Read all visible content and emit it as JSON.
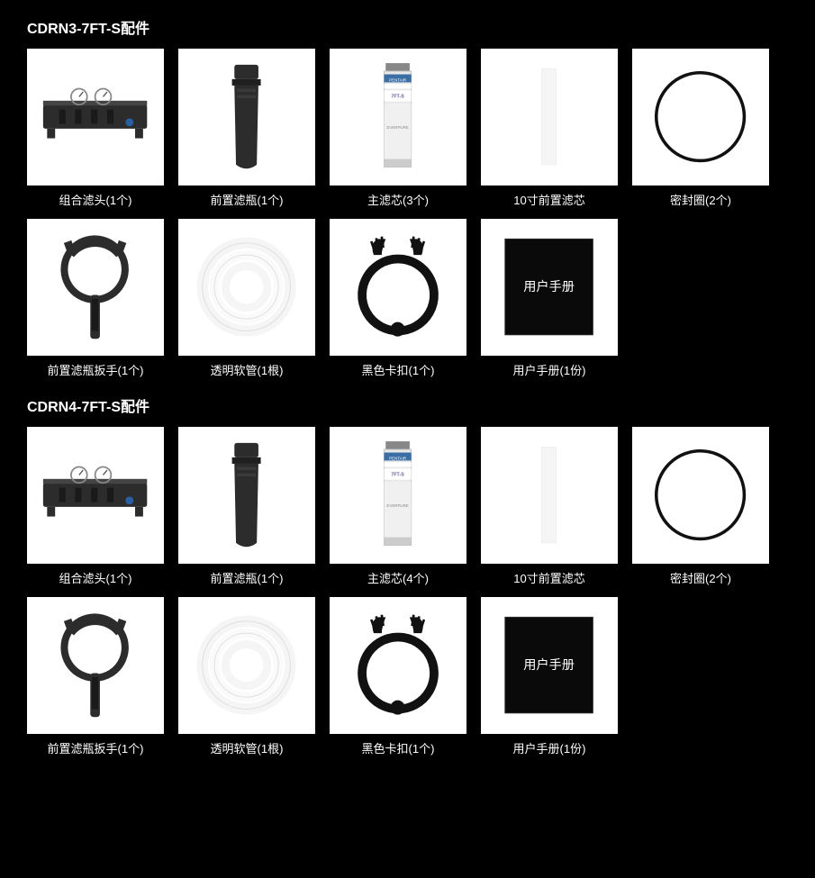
{
  "colors": {
    "bg": "#000000",
    "box_bg": "#ffffff",
    "text": "#ffffff",
    "dark_part": "#2c2c2c",
    "light_gray": "#d9d9d9",
    "pale": "#f5f5f5",
    "filter_label_purple": "#6b5b95",
    "filter_label_blue": "#3a6ea5"
  },
  "sections": [
    {
      "title": "CDRN3-7FT-S配件",
      "items": [
        {
          "icon": "filter-head",
          "label": "组合滤头(1个)"
        },
        {
          "icon": "pre-bottle",
          "label": "前置滤瓶(1个)"
        },
        {
          "icon": "main-filter",
          "label": "主滤芯(3个)"
        },
        {
          "icon": "pre-filter",
          "label": "10寸前置滤芯"
        },
        {
          "icon": "o-ring",
          "label": "密封圈(2个)"
        },
        {
          "icon": "wrench",
          "label": "前置滤瓶扳手(1个)"
        },
        {
          "icon": "hose",
          "label": "透明软管(1根)"
        },
        {
          "icon": "clip",
          "label": "黑色卡扣(1个)"
        },
        {
          "icon": "manual",
          "label": "用户手册(1份)",
          "manual_text": "用户手册"
        }
      ]
    },
    {
      "title": "CDRN4-7FT-S配件",
      "items": [
        {
          "icon": "filter-head",
          "label": "组合滤头(1个)"
        },
        {
          "icon": "pre-bottle",
          "label": "前置滤瓶(1个)"
        },
        {
          "icon": "main-filter",
          "label": "主滤芯(4个)"
        },
        {
          "icon": "pre-filter",
          "label": "10寸前置滤芯"
        },
        {
          "icon": "o-ring",
          "label": "密封圈(2个)"
        },
        {
          "icon": "wrench",
          "label": "前置滤瓶扳手(1个)"
        },
        {
          "icon": "hose",
          "label": "透明软管(1根)"
        },
        {
          "icon": "clip",
          "label": "黑色卡扣(1个)"
        },
        {
          "icon": "manual",
          "label": "用户手册(1份)",
          "manual_text": "用户手册"
        }
      ]
    }
  ]
}
